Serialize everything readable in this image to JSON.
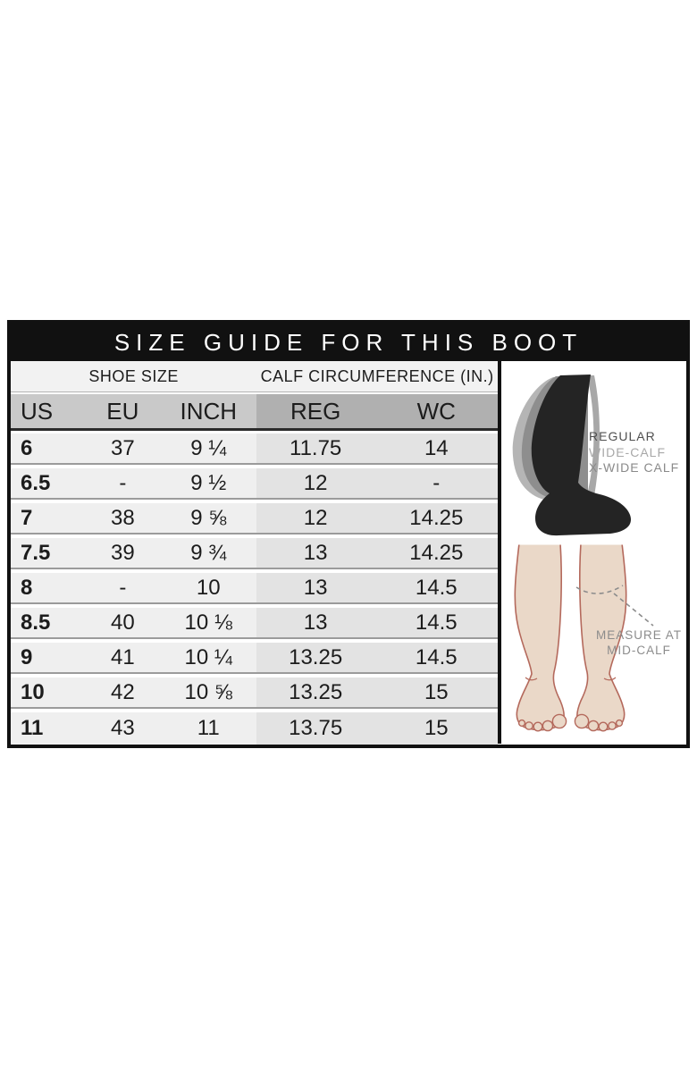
{
  "title": "SIZE GUIDE FOR THIS BOOT",
  "chart_data": {
    "type": "table",
    "title": "SIZE GUIDE FOR THIS BOOT",
    "column_groups": [
      "SHOE SIZE",
      "CALF CIRCUMFERENCE (IN.)"
    ],
    "columns": [
      "US",
      "EU",
      "INCH",
      "REG",
      "WC"
    ],
    "rows": [
      [
        "6",
        "37",
        "9 ¼",
        "11.75",
        "14"
      ],
      [
        "6.5",
        "-",
        "9 ½",
        "12",
        "-"
      ],
      [
        "7",
        "38",
        "9 ⅝",
        "12",
        "14.25"
      ],
      [
        "7.5",
        "39",
        "9 ¾",
        "13",
        "14.25"
      ],
      [
        "8",
        "-",
        "10",
        "13",
        "14.5"
      ],
      [
        "8.5",
        "40",
        "10 ⅛",
        "13",
        "14.5"
      ],
      [
        "9",
        "41",
        "10 ¼",
        "13.25",
        "14.5"
      ],
      [
        "10",
        "42",
        "10 ⅝",
        "13.25",
        "15"
      ],
      [
        "11",
        "43",
        "11",
        "13.75",
        "15"
      ]
    ]
  },
  "illustration": {
    "boot_labels": [
      "REGULAR",
      "WIDE-CALF",
      "X-WIDE CALF"
    ],
    "measure_note_line1": "MEASURE AT",
    "measure_note_line2": "MID-CALF"
  },
  "colors": {
    "ink": "#111111",
    "title_text": "#ffffff",
    "subhead_bg": "#f2f2f2",
    "colhead_left": "#c9c9c9",
    "colhead_right": "#b0b0b0",
    "row_left": "#efefef",
    "row_right": "#e3e3e3",
    "row_line": "#9b9b9b",
    "text": "#1c1c1c",
    "boot_black": "#242424",
    "boot_gray": "#8e8e8e",
    "boot_gray_light": "#b5b5b5",
    "label_regular": "#4f4f4f",
    "label_wide": "#a8a8a8",
    "label_xwide": "#8a8a8a",
    "measure_text": "#8c8c8c",
    "skin": "#ead8c8",
    "skin_line": "#b4695c"
  }
}
